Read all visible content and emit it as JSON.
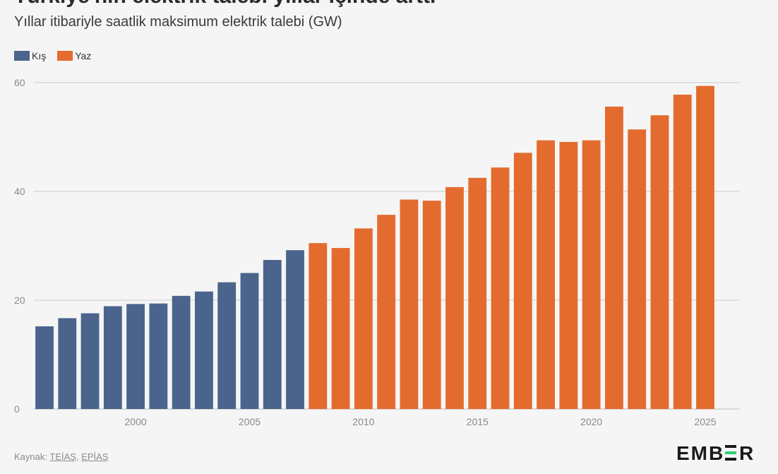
{
  "header": {
    "title": "Türkiye'nin elektrik talebi yıllar içinde arttı",
    "subtitle": "Yıllar itibariyle saatlik maksimum elektrik talebi (GW)"
  },
  "source": {
    "prefix": "Kaynak:",
    "links": [
      "TEİAŞ",
      "EPİAŞ"
    ],
    "separator": ","
  },
  "logo": {
    "text": "EMBER",
    "color": "#1a1a1a",
    "accent": "#2ecc71"
  },
  "colors": {
    "winter": "#4a648c",
    "summer": "#e36b2e",
    "grid": "#cccccc",
    "background": "#f5f5f5"
  },
  "chart_data": {
    "type": "bar",
    "title": "",
    "subtitle": "Yıllar itibariyle saatlik maksimum elektrik talebi (GW)",
    "xlabel": "",
    "ylabel": "",
    "ylim": [
      0,
      60
    ],
    "y_ticks": [
      0,
      20,
      40,
      60
    ],
    "x_ticks": [
      2000,
      2005,
      2010,
      2015,
      2020,
      2025
    ],
    "grid": "horizontal",
    "legend_position": "top-left",
    "series": [
      {
        "name": "Kış",
        "color": "#4a648c",
        "x": [
          1996,
          1997,
          1998,
          1999,
          2000,
          2001,
          2002,
          2003,
          2004,
          2005,
          2006,
          2007
        ],
        "values": [
          15.2,
          16.7,
          17.6,
          18.9,
          19.3,
          19.4,
          20.8,
          21.6,
          23.3,
          25.0,
          27.4,
          29.2
        ]
      },
      {
        "name": "Yaz",
        "color": "#e36b2e",
        "x": [
          2008,
          2009,
          2010,
          2011,
          2012,
          2013,
          2014,
          2015,
          2016,
          2017,
          2018,
          2019,
          2020,
          2021,
          2022,
          2023,
          2024,
          2025
        ],
        "values": [
          30.5,
          29.6,
          33.2,
          35.7,
          38.5,
          38.3,
          40.8,
          42.5,
          44.4,
          47.1,
          49.4,
          49.1,
          49.4,
          55.6,
          51.4,
          54.0,
          57.8,
          59.4
        ]
      }
    ]
  }
}
